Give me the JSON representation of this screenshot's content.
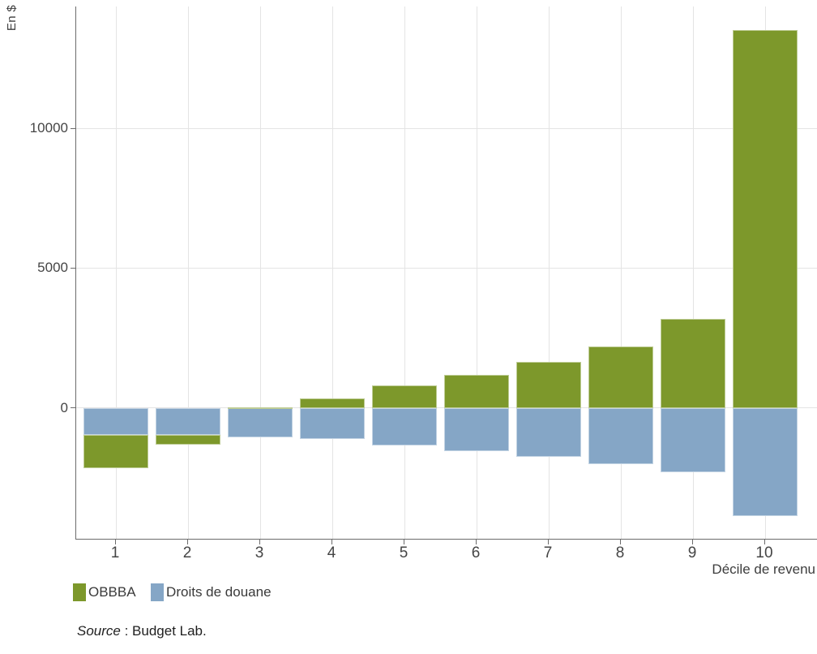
{
  "chart_data": {
    "type": "bar",
    "stacked": true,
    "diverging": true,
    "ylabel": "En $",
    "xlabel": "Décile de revenu",
    "categories": [
      "1",
      "2",
      "3",
      "4",
      "5",
      "6",
      "7",
      "8",
      "9",
      "10"
    ],
    "series": [
      {
        "name": "OBBBA",
        "color": "#7d982b",
        "values": [
          -1200,
          -350,
          30,
          350,
          800,
          1200,
          1650,
          2200,
          3200,
          13500
        ]
      },
      {
        "name": "Droits de douane",
        "color": "#85a6c6",
        "values": [
          -950,
          -950,
          -1050,
          -1100,
          -1350,
          -1550,
          -1750,
          -2000,
          -2300,
          -3850
        ]
      }
    ],
    "yticks": [
      0,
      5000,
      10000
    ],
    "ylim": [
      -4700,
      14350
    ],
    "grid": true,
    "legend_position": "bottom-left",
    "source": {
      "label": "Source",
      "text": " : Budget Lab."
    }
  },
  "colors": {
    "axis": "#6b6b6b",
    "gridline": "#e4e4e4",
    "tick_text": "#454545",
    "obbba": "#7d982b",
    "droits_de_douane": "#85a6c6"
  }
}
